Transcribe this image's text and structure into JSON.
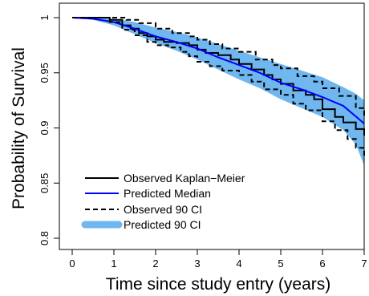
{
  "chart_data": {
    "type": "line",
    "title": "",
    "xlabel": "Time since study entry (years)",
    "ylabel": "Probability of Survival",
    "xlim": [
      0,
      7
    ],
    "ylim": [
      0.8,
      1.0
    ],
    "x_ticks": [
      0,
      1,
      2,
      3,
      4,
      5,
      6,
      7
    ],
    "x_tick_labels": [
      "0",
      "1",
      "2",
      "3",
      "4",
      "5",
      "6",
      "7"
    ],
    "y_ticks": [
      0.8,
      0.85,
      0.9,
      0.95,
      1.0
    ],
    "y_tick_labels": [
      "0.8",
      "0.85",
      "0.9",
      "0.95",
      "1"
    ],
    "grid": false,
    "legend_position": "bottom-left",
    "legend": [
      {
        "label": "Observed Kaplan−Meier",
        "style": "solid",
        "color": "#000000"
      },
      {
        "label": "Predicted Median",
        "style": "solid",
        "color": "#0000ff"
      },
      {
        "label": "Observed 90 CI",
        "style": "dashed",
        "color": "#000000"
      },
      {
        "label": "Predicted 90 CI",
        "style": "band",
        "color": "#6fb7ee"
      }
    ],
    "series": [
      {
        "name": "Observed Kaplan−Meier",
        "step": true,
        "x": [
          0,
          0.5,
          0.9,
          1.2,
          1.4,
          1.6,
          1.8,
          2.0,
          2.2,
          2.5,
          2.8,
          3.0,
          3.2,
          3.5,
          3.8,
          4.0,
          4.3,
          4.6,
          4.8,
          5.0,
          5.3,
          5.6,
          5.8,
          6.0,
          6.3,
          6.5,
          6.8,
          7.0
        ],
        "y": [
          1.0,
          1.0,
          0.998,
          0.993,
          0.99,
          0.986,
          0.983,
          0.98,
          0.978,
          0.977,
          0.975,
          0.971,
          0.968,
          0.966,
          0.962,
          0.958,
          0.953,
          0.948,
          0.944,
          0.94,
          0.934,
          0.93,
          0.926,
          0.917,
          0.91,
          0.905,
          0.899,
          0.893
        ]
      },
      {
        "name": "Predicted Median",
        "x": [
          0,
          0.5,
          1.0,
          1.5,
          2.0,
          2.5,
          3.0,
          3.5,
          4.0,
          4.5,
          5.0,
          5.5,
          6.0,
          6.5,
          7.0
        ],
        "y": [
          1.0,
          0.999,
          0.996,
          0.99,
          0.983,
          0.978,
          0.972,
          0.964,
          0.957,
          0.95,
          0.941,
          0.935,
          0.928,
          0.92,
          0.904
        ]
      },
      {
        "name": "Observed 90 CI upper",
        "step": true,
        "x": [
          0,
          0.9,
          1.3,
          1.6,
          2.0,
          2.4,
          2.8,
          3.0,
          3.3,
          3.6,
          4.0,
          4.4,
          4.8,
          5.0,
          5.4,
          5.8,
          6.0,
          6.4,
          6.8,
          7.0
        ],
        "y": [
          1.0,
          1.0,
          0.998,
          0.995,
          0.99,
          0.986,
          0.983,
          0.98,
          0.976,
          0.972,
          0.969,
          0.962,
          0.957,
          0.954,
          0.947,
          0.942,
          0.936,
          0.929,
          0.918,
          0.911
        ]
      },
      {
        "name": "Observed 90 CI lower",
        "step": true,
        "x": [
          0,
          0.9,
          1.2,
          1.5,
          1.8,
          2.0,
          2.3,
          2.6,
          2.8,
          3.0,
          3.3,
          3.6,
          4.0,
          4.3,
          4.6,
          5.0,
          5.3,
          5.6,
          6.0,
          6.3,
          6.6,
          6.8,
          7.0
        ],
        "y": [
          1.0,
          0.996,
          0.989,
          0.984,
          0.978,
          0.975,
          0.973,
          0.969,
          0.965,
          0.96,
          0.956,
          0.952,
          0.948,
          0.942,
          0.935,
          0.93,
          0.922,
          0.916,
          0.906,
          0.898,
          0.89,
          0.882,
          0.874
        ]
      }
    ],
    "band": {
      "name": "Predicted 90 CI",
      "x": [
        0,
        0.5,
        1.0,
        1.5,
        2.0,
        2.5,
        3.0,
        3.5,
        4.0,
        4.5,
        5.0,
        5.5,
        6.0,
        6.5,
        6.8,
        7.0
      ],
      "upper": [
        1.0,
        1.0,
        0.999,
        0.996,
        0.991,
        0.987,
        0.982,
        0.976,
        0.97,
        0.964,
        0.958,
        0.952,
        0.946,
        0.937,
        0.931,
        0.925
      ],
      "lower": [
        1.0,
        0.998,
        0.993,
        0.985,
        0.977,
        0.97,
        0.962,
        0.953,
        0.944,
        0.936,
        0.926,
        0.918,
        0.91,
        0.898,
        0.885,
        0.866
      ]
    },
    "colors": {
      "band": "#6fb7ee",
      "median": "#0000ff",
      "observed": "#000000"
    }
  }
}
